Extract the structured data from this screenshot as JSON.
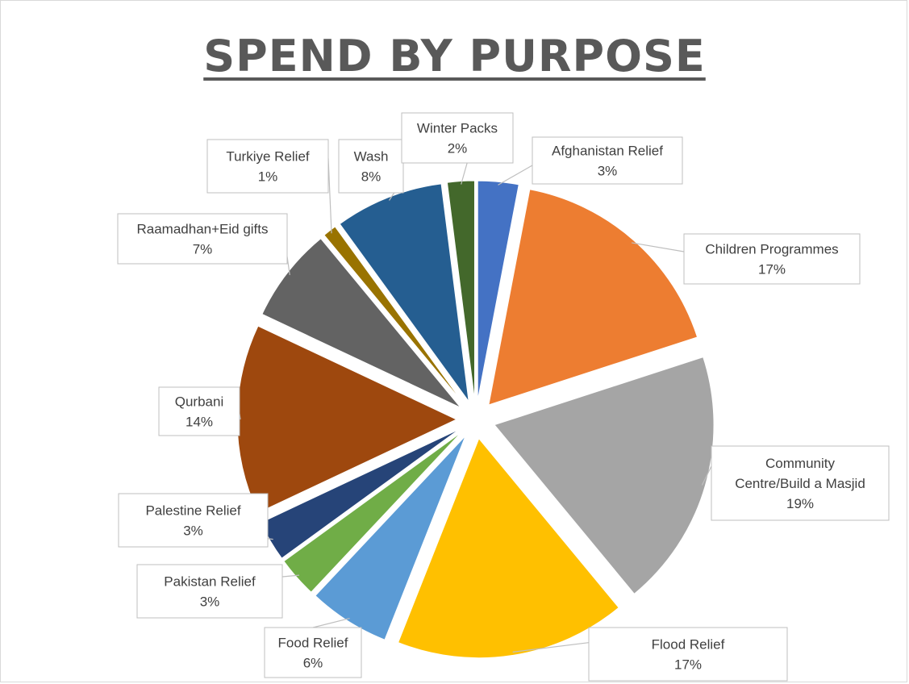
{
  "chart_data": {
    "type": "pie",
    "title": "SPEND BY PURPOSE",
    "exploded": true,
    "legend": "none",
    "slices": [
      {
        "name": "Afghanistan Relief",
        "value": 3,
        "label": "3%",
        "color": "#4472C4"
      },
      {
        "name": "Children Programmes",
        "value": 17,
        "label": "17%",
        "color": "#ED7D31"
      },
      {
        "name": "Community Centre/Build a Masjid",
        "value": 19,
        "label": "19%",
        "color": "#A5A5A5"
      },
      {
        "name": "Flood Relief",
        "value": 17,
        "label": "17%",
        "color": "#FFC000"
      },
      {
        "name": "Food Relief",
        "value": 6,
        "label": "6%",
        "color": "#5B9BD5"
      },
      {
        "name": "Pakistan Relief",
        "value": 3,
        "label": "3%",
        "color": "#70AD47"
      },
      {
        "name": "Palestine Relief",
        "value": 3,
        "label": "3%",
        "color": "#264478"
      },
      {
        "name": "Qurbani",
        "value": 14,
        "label": "14%",
        "color": "#9E480E"
      },
      {
        "name": "Raamadhan+Eid gifts",
        "value": 7,
        "label": "7%",
        "color": "#636363"
      },
      {
        "name": "Turkiye Relief",
        "value": 1,
        "label": "1%",
        "color": "#997300"
      },
      {
        "name": "Wash",
        "value": 8,
        "label": "8%",
        "color": "#255E91"
      },
      {
        "name": "Winter Packs",
        "value": 2,
        "label": "2%",
        "color": "#43682B"
      }
    ]
  }
}
